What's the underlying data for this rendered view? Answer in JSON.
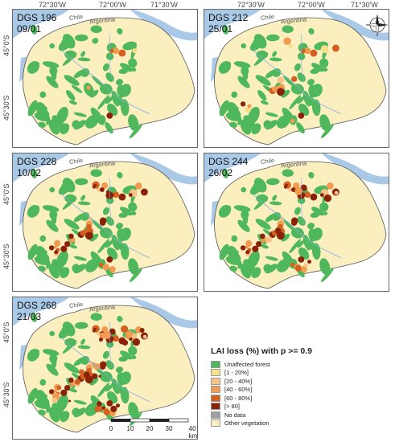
{
  "axes": {
    "lon_top": [
      "72°30'W",
      "72°00'W",
      "71°30'W"
    ],
    "lat_left": [
      "45°0'S",
      "45°30'S"
    ]
  },
  "panels": [
    {
      "dgs": "DGS 196",
      "date": "09/01",
      "chile": "Chile",
      "argentina": "Argentina"
    },
    {
      "dgs": "DGS 212",
      "date": "25/01",
      "chile": "Chile",
      "argentina": "Argentina"
    },
    {
      "dgs": "DGS 228",
      "date": "10/02",
      "chile": "Chile",
      "argentina": "Argentina"
    },
    {
      "dgs": "DGS 244",
      "date": "26/02",
      "chile": "Chile",
      "argentina": "Argentina"
    },
    {
      "dgs": "DGS 268",
      "date": "21/03",
      "chile": "Chile",
      "argentina": "Argentina"
    }
  ],
  "legend": {
    "title": "LAI loss (%) with p >= 0.9",
    "items": [
      {
        "label": "Unaffected forest",
        "color": "#4fb85c"
      },
      {
        "label": "[1 - 20%]",
        "color": "#f5e08a"
      },
      {
        "label": "[20 - 40%]",
        "color": "#f8c288"
      },
      {
        "label": "[40 - 60%]",
        "color": "#f19a50"
      },
      {
        "label": "[60 - 80%]",
        "color": "#d4601f"
      },
      {
        "label": "[> 80]",
        "color": "#8a2207"
      },
      {
        "label": "No data",
        "color": "#a0a0a0"
      },
      {
        "label": "Other vegetation",
        "color": "#fbefc0"
      }
    ]
  },
  "scale": {
    "ticks": [
      "0",
      "10",
      "20",
      "30",
      "40 km"
    ]
  },
  "colors": {
    "water": "#aac9e6",
    "land_bg": "#fbefc0",
    "forest": "#4fb85c"
  }
}
